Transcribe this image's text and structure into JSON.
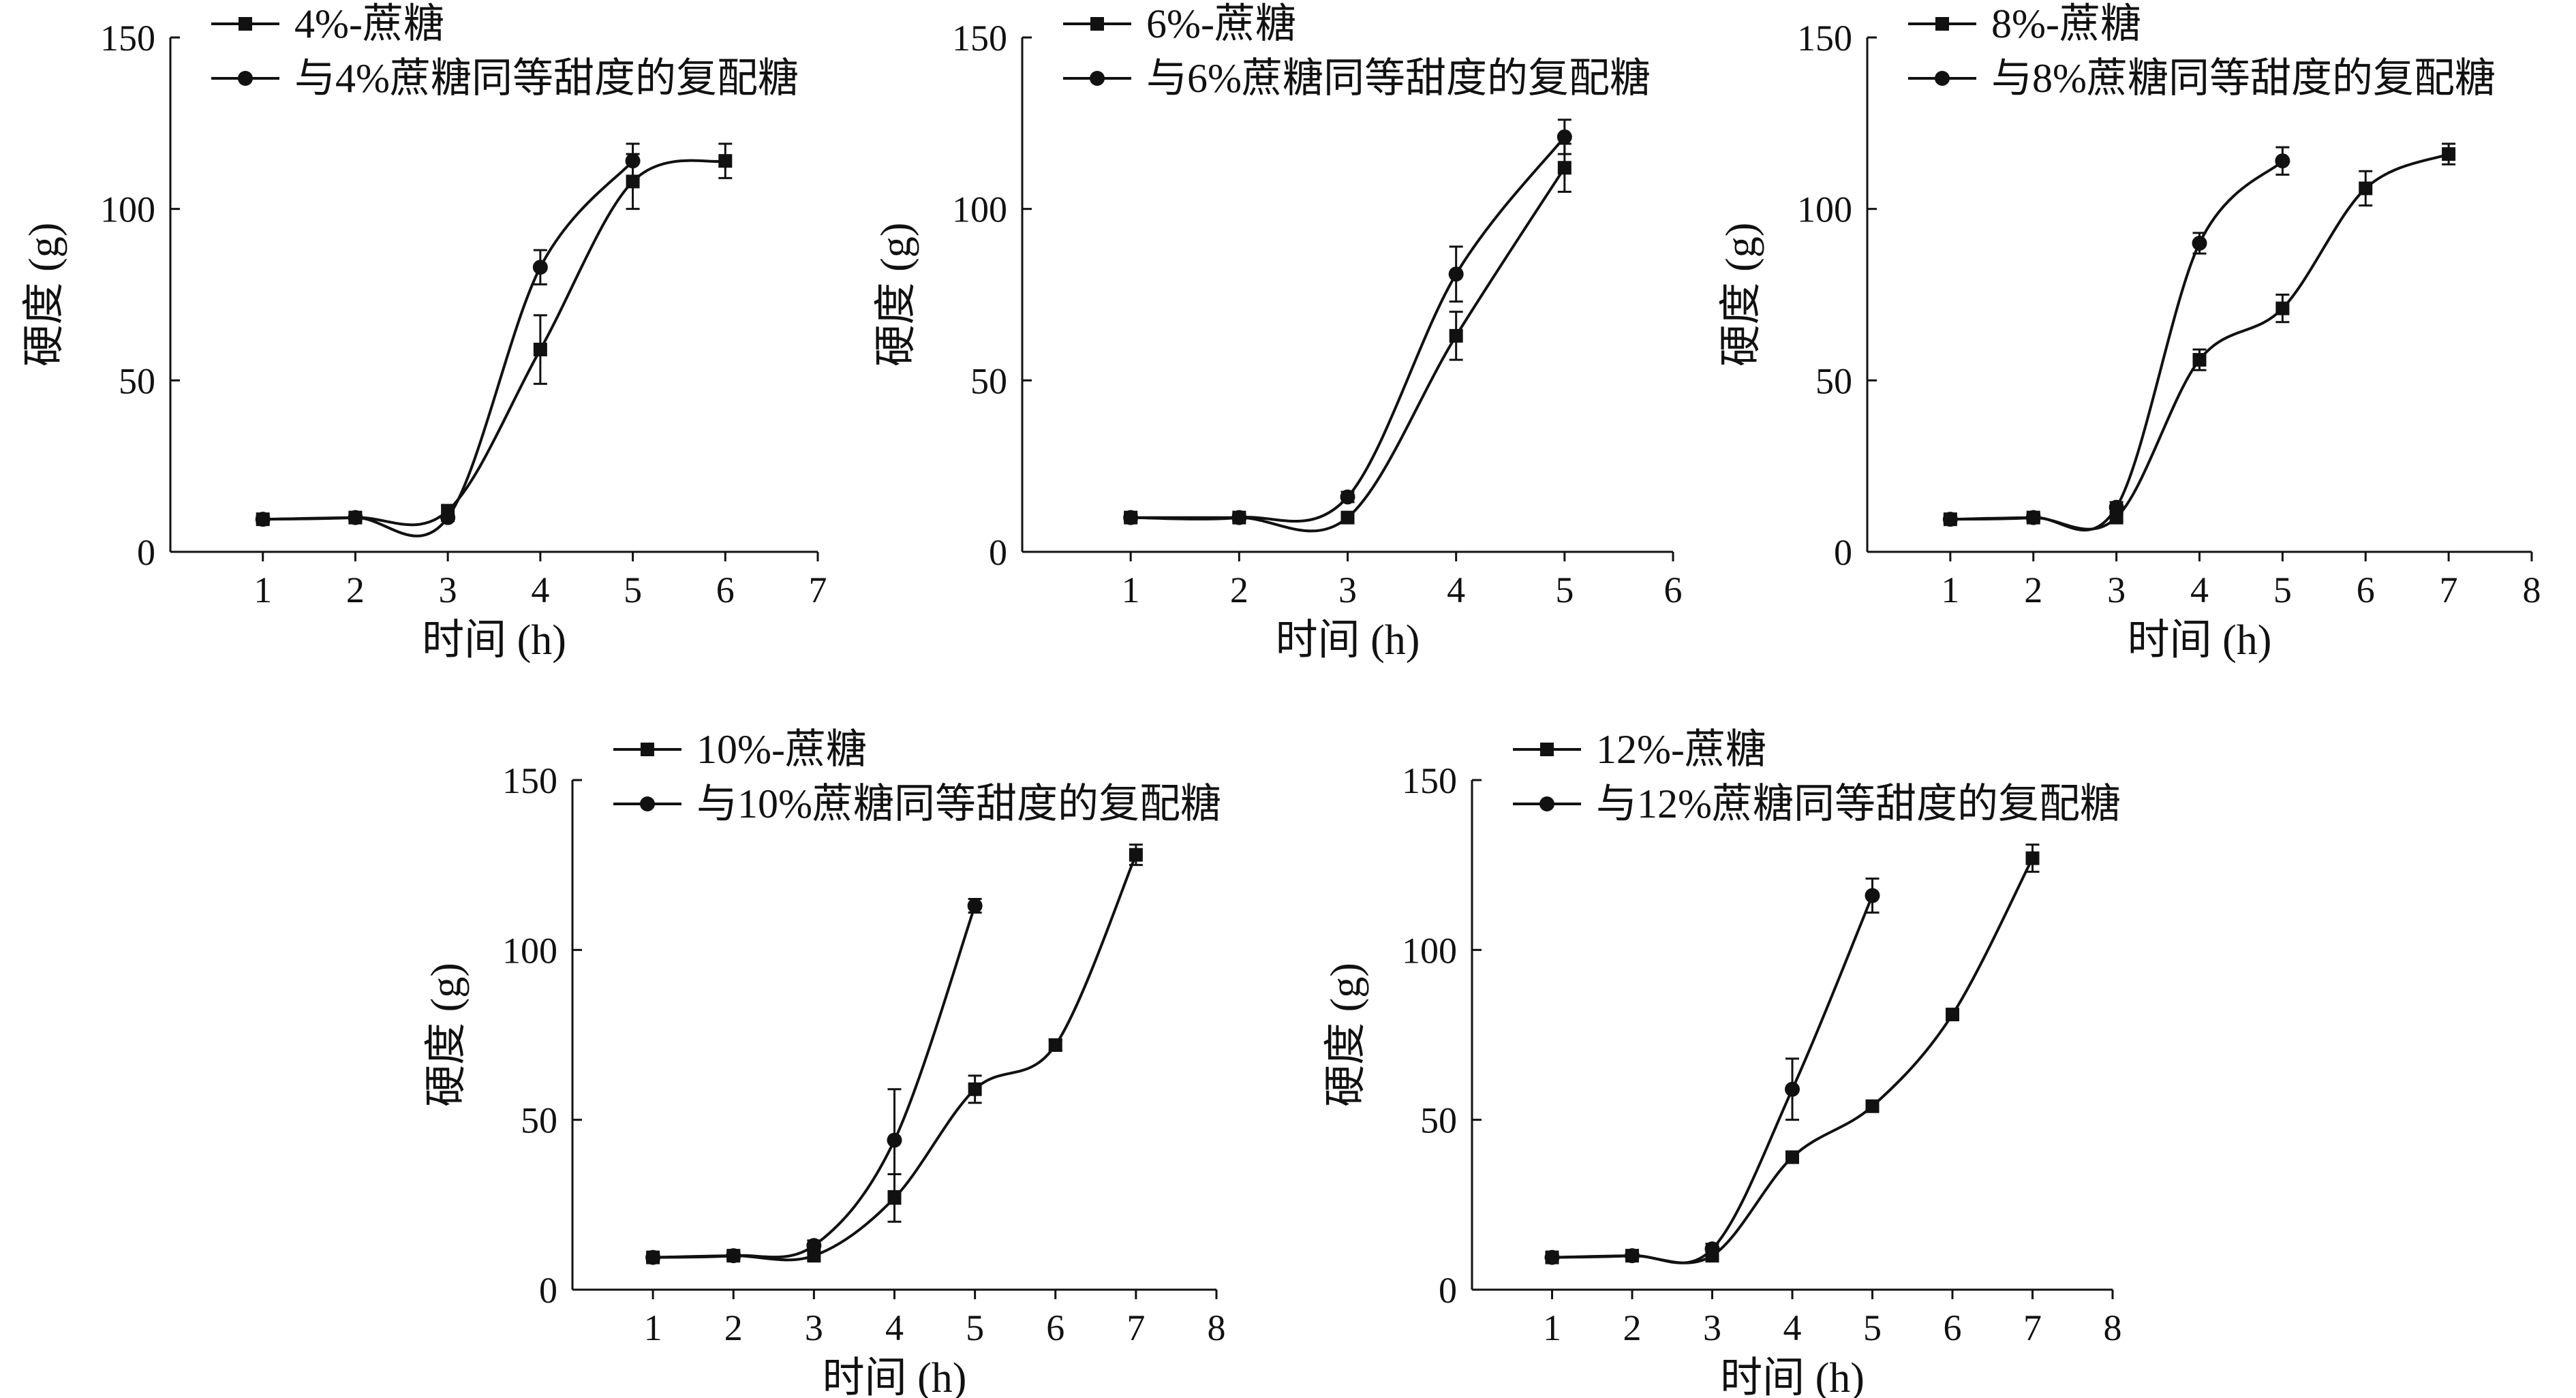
{
  "chart_data": [
    {
      "type": "line",
      "xlabel": "时间 (h)",
      "ylabel": "硬度 (g)",
      "xlim": [
        0,
        7
      ],
      "ylim": [
        0,
        150
      ],
      "xticks": [
        1,
        2,
        3,
        4,
        5,
        6,
        7
      ],
      "yticks": [
        0,
        50,
        100,
        150
      ],
      "series": [
        {
          "name": "4%-蔗糖",
          "marker": "square",
          "x": [
            1,
            2,
            3,
            4,
            5,
            6
          ],
          "y": [
            9.5,
            10,
            12,
            59,
            108,
            114
          ],
          "err": [
            1,
            1,
            1.5,
            10,
            8,
            5
          ]
        },
        {
          "name": "与4%蔗糖同等甜度的复配糖",
          "marker": "circle",
          "x": [
            1,
            2,
            3,
            4,
            5
          ],
          "y": [
            9.5,
            10,
            10,
            83,
            114
          ],
          "err": [
            1,
            1,
            1,
            5,
            5
          ]
        }
      ]
    },
    {
      "type": "line",
      "xlabel": "时间 (h)",
      "ylabel": "硬度 (g)",
      "xlim": [
        0,
        6
      ],
      "ylim": [
        0,
        150
      ],
      "xticks": [
        1,
        2,
        3,
        4,
        5,
        6
      ],
      "yticks": [
        0,
        50,
        100,
        150
      ],
      "series": [
        {
          "name": "6%-蔗糖",
          "marker": "square",
          "x": [
            1,
            2,
            3,
            4,
            5
          ],
          "y": [
            10,
            10,
            10,
            63,
            112
          ],
          "err": [
            1,
            1,
            1,
            7,
            7
          ]
        },
        {
          "name": "与6%蔗糖同等甜度的复配糖",
          "marker": "circle",
          "x": [
            1,
            2,
            3,
            4,
            5
          ],
          "y": [
            10,
            10,
            16,
            81,
            121
          ],
          "err": [
            1,
            1,
            1.5,
            8,
            5
          ]
        }
      ]
    },
    {
      "type": "line",
      "xlabel": "时间 (h)",
      "ylabel": "硬度 (g)",
      "xlim": [
        0,
        8
      ],
      "ylim": [
        0,
        150
      ],
      "xticks": [
        1,
        2,
        3,
        4,
        5,
        6,
        7,
        8
      ],
      "yticks": [
        0,
        50,
        100,
        150
      ],
      "series": [
        {
          "name": "8%-蔗糖",
          "marker": "square",
          "x": [
            1,
            2,
            3,
            4,
            5,
            6,
            7
          ],
          "y": [
            9.5,
            10,
            10,
            56,
            71,
            106,
            116
          ],
          "err": [
            1,
            1,
            1,
            3,
            4,
            5,
            3
          ]
        },
        {
          "name": "与8%蔗糖同等甜度的复配糖",
          "marker": "circle",
          "x": [
            1,
            2,
            3,
            4,
            5
          ],
          "y": [
            9.5,
            10,
            13,
            90,
            114
          ],
          "err": [
            1,
            1,
            1.5,
            3,
            4
          ]
        }
      ]
    },
    {
      "type": "line",
      "xlabel": "时间 (h)",
      "ylabel": "硬度 (g)",
      "xlim": [
        0,
        8
      ],
      "ylim": [
        0,
        150
      ],
      "xticks": [
        1,
        2,
        3,
        4,
        5,
        6,
        7,
        8
      ],
      "yticks": [
        0,
        50,
        100,
        150
      ],
      "series": [
        {
          "name": "10%-蔗糖",
          "marker": "square",
          "x": [
            1,
            2,
            3,
            4,
            5,
            6,
            7
          ],
          "y": [
            9.5,
            10,
            10,
            27,
            59,
            72,
            128
          ],
          "err": [
            1,
            1,
            1,
            7,
            4,
            1.5,
            3
          ]
        },
        {
          "name": "与10%蔗糖同等甜度的复配糖",
          "marker": "circle",
          "x": [
            1,
            2,
            3,
            4,
            5
          ],
          "y": [
            9.5,
            10,
            13,
            44,
            113
          ],
          "err": [
            1,
            1,
            1.5,
            15,
            2
          ]
        }
      ]
    },
    {
      "type": "line",
      "xlabel": "时间 (h)",
      "ylabel": "硬度 (g)",
      "xlim": [
        0,
        8
      ],
      "ylim": [
        0,
        150
      ],
      "xticks": [
        1,
        2,
        3,
        4,
        5,
        6,
        7,
        8
      ],
      "yticks": [
        0,
        50,
        100,
        150
      ],
      "series": [
        {
          "name": "12%-蔗糖",
          "marker": "square",
          "x": [
            1,
            2,
            3,
            4,
            5,
            6,
            7
          ],
          "y": [
            9.5,
            10,
            10,
            39,
            54,
            81,
            127
          ],
          "err": [
            1,
            1,
            1,
            1,
            1.5,
            1,
            4
          ]
        },
        {
          "name": "与12%蔗糖同等甜度的复配糖",
          "marker": "circle",
          "x": [
            1,
            2,
            3,
            4,
            5
          ],
          "y": [
            9.5,
            10,
            12,
            59,
            116
          ],
          "err": [
            1,
            1,
            1.5,
            9,
            5
          ]
        }
      ]
    }
  ]
}
